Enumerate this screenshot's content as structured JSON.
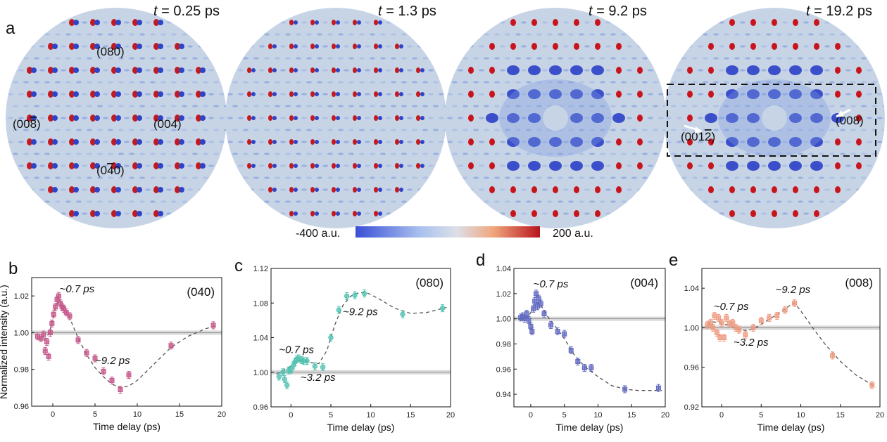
{
  "figure": {
    "panel_a": {
      "letter": "a",
      "patterns": [
        {
          "time_label": "t = 0.25 ps",
          "t_var": "t",
          "t_rest": " = 0.25 ps",
          "kind": "early",
          "miller": [
            {
              "text": "(080)"
            },
            {
              "text": "(00",
              "bar": "8",
              "close": ")"
            },
            {
              "text": "(004)"
            },
            {
              "text": "(0",
              "bar": "4",
              "close": "0)"
            }
          ]
        },
        {
          "time_label": "t = 1.3 ps",
          "t_var": "t",
          "t_rest": " = 1.3 ps",
          "kind": "mid",
          "miller": []
        },
        {
          "time_label": "t = 9.2 ps",
          "t_var": "t",
          "t_rest": " = 9.2 ps",
          "kind": "late",
          "miller": []
        },
        {
          "time_label": "t = 19.2 ps",
          "t_var": "t",
          "t_rest": " = 19.2 ps",
          "kind": "late",
          "miller": [
            {
              "text": "(008)"
            },
            {
              "text": "(001",
              "bar": "2",
              "close": ")"
            }
          ]
        }
      ],
      "colorbar": {
        "min_label": "-400 a.u.",
        "max_label": "200 a.u.",
        "colors": [
          "#3a4fd6",
          "#c8d8ee",
          "#f0b590",
          "#b8141c"
        ]
      }
    }
  },
  "chart_data": [
    {
      "type": "scatter",
      "panel": "b",
      "label": "(040)",
      "xlabel": "Time delay (ps)",
      "ylabel": "Normalized intensity (a.u.)",
      "xlim": [
        -2.5,
        20
      ],
      "ylim": [
        0.96,
        1.03
      ],
      "xticks": [
        0,
        5,
        10,
        15,
        20
      ],
      "yticks": [
        0.96,
        0.98,
        1.0,
        1.02
      ],
      "ytick_labels": [
        "0.96",
        "0.98",
        "1.00",
        "1.02"
      ],
      "color": "#c6568a",
      "marker": "square",
      "points": [
        [
          -1.8,
          0.998
        ],
        [
          -1.4,
          0.997
        ],
        [
          -1.1,
          0.999
        ],
        [
          -0.9,
          0.99
        ],
        [
          -0.7,
          0.995
        ],
        [
          -0.5,
          0.987
        ],
        [
          -0.3,
          1.0
        ],
        [
          -0.1,
          1.005
        ],
        [
          0.1,
          1.01
        ],
        [
          0.3,
          1.014
        ],
        [
          0.5,
          1.018
        ],
        [
          0.7,
          1.02
        ],
        [
          0.9,
          1.016
        ],
        [
          1.1,
          1.014
        ],
        [
          1.3,
          1.013
        ],
        [
          1.6,
          1.011
        ],
        [
          2.0,
          1.009
        ],
        [
          3.0,
          0.996
        ],
        [
          4.0,
          0.989
        ],
        [
          5.0,
          0.986
        ],
        [
          6.0,
          0.979
        ],
        [
          7.0,
          0.974
        ],
        [
          8.0,
          0.969
        ],
        [
          9.0,
          0.977
        ],
        [
          14.0,
          0.993
        ],
        [
          19.0,
          1.004
        ]
      ],
      "fit": [
        [
          -1.8,
          0.997
        ],
        [
          -1.0,
          0.996
        ],
        [
          -0.4,
          1.0
        ],
        [
          0.2,
          1.012
        ],
        [
          0.7,
          1.018
        ],
        [
          1.2,
          1.015
        ],
        [
          2,
          1.008
        ],
        [
          3,
          0.997
        ],
        [
          4,
          0.988
        ],
        [
          5,
          0.981
        ],
        [
          6,
          0.976
        ],
        [
          7,
          0.972
        ],
        [
          8,
          0.97
        ],
        [
          9,
          0.971
        ],
        [
          10,
          0.974
        ],
        [
          12,
          0.983
        ],
        [
          14,
          0.992
        ],
        [
          16,
          0.998
        ],
        [
          18,
          1.002
        ],
        [
          19.5,
          1.004
        ]
      ],
      "annotations": [
        {
          "text": "~0.7 ps",
          "x": 0.8,
          "y": 1.022
        },
        {
          "text": "~9.2 ps",
          "x": 5.0,
          "y": 0.983
        }
      ],
      "baseline": 1.0
    },
    {
      "type": "scatter",
      "panel": "c",
      "label": "(080)",
      "xlabel": "Time delay (ps)",
      "ylabel": "",
      "xlim": [
        -2.5,
        20
      ],
      "ylim": [
        0.96,
        1.12
      ],
      "xticks": [
        0,
        5,
        10,
        15,
        20
      ],
      "yticks": [
        0.96,
        1.0,
        1.04,
        1.08,
        1.12
      ],
      "ytick_labels": [
        "0.96",
        "1.00",
        "1.04",
        "1.08",
        "1.12"
      ],
      "color": "#4fc1b0",
      "marker": "circle",
      "points": [
        [
          -1.5,
          0.995
        ],
        [
          -1.0,
          1.0
        ],
        [
          -0.8,
          0.992
        ],
        [
          -0.5,
          0.985
        ],
        [
          -0.3,
          1.002
        ],
        [
          0.0,
          1.003
        ],
        [
          0.3,
          1.008
        ],
        [
          0.5,
          1.012
        ],
        [
          0.7,
          1.015
        ],
        [
          1.0,
          1.016
        ],
        [
          1.3,
          1.014
        ],
        [
          1.6,
          1.013
        ],
        [
          2.0,
          1.013
        ],
        [
          3.0,
          1.007
        ],
        [
          4.0,
          1.006
        ],
        [
          5.0,
          1.04
        ],
        [
          6.0,
          1.072
        ],
        [
          7.0,
          1.088
        ],
        [
          8.0,
          1.089
        ],
        [
          9.2,
          1.091
        ],
        [
          14.0,
          1.067
        ],
        [
          19.0,
          1.074
        ]
      ],
      "fit": [
        [
          -1.8,
          0.998
        ],
        [
          -1,
          1.002
        ],
        [
          0,
          1.007
        ],
        [
          0.7,
          1.012
        ],
        [
          1.5,
          1.014
        ],
        [
          2.5,
          1.011
        ],
        [
          3.5,
          1.01
        ],
        [
          4.5,
          1.025
        ],
        [
          5.5,
          1.055
        ],
        [
          6.5,
          1.077
        ],
        [
          7.5,
          1.088
        ],
        [
          8.5,
          1.092
        ],
        [
          9.5,
          1.092
        ],
        [
          11,
          1.085
        ],
        [
          13,
          1.074
        ],
        [
          15,
          1.068
        ],
        [
          17,
          1.069
        ],
        [
          19.5,
          1.075
        ]
      ],
      "annotations": [
        {
          "text": "~0.7 ps",
          "x": -1.5,
          "y": 1.022
        },
        {
          "text": "~9.2 ps",
          "x": 6.5,
          "y": 1.066
        },
        {
          "text": "~3.2 ps",
          "x": 1.2,
          "y": 0.99
        }
      ],
      "baseline": 1.0
    },
    {
      "type": "scatter",
      "panel": "d",
      "label": "(004)",
      "xlabel": "Time delay (ps)",
      "ylabel": "",
      "xlim": [
        -2.5,
        20
      ],
      "ylim": [
        0.93,
        1.04
      ],
      "xticks": [
        0,
        5,
        10,
        15,
        20
      ],
      "yticks": [
        0.94,
        0.96,
        0.98,
        1.0,
        1.02,
        1.04
      ],
      "ytick_labels": [
        "0.94",
        "0.96",
        "0.98",
        "1.00",
        "1.02",
        "1.04"
      ],
      "color": "#6068c0",
      "marker": "square",
      "points": [
        [
          -1.5,
          1.001
        ],
        [
          -1.2,
          1.002
        ],
        [
          -0.9,
          1.0
        ],
        [
          -0.6,
          1.004
        ],
        [
          -0.3,
          0.999
        ],
        [
          0.0,
          0.994
        ],
        [
          0.2,
          0.99
        ],
        [
          0.4,
          1.008
        ],
        [
          0.6,
          1.014
        ],
        [
          0.8,
          1.02
        ],
        [
          1.0,
          1.01
        ],
        [
          1.2,
          1.016
        ],
        [
          1.5,
          1.012
        ],
        [
          2.0,
          1.004
        ],
        [
          3.0,
          0.995
        ],
        [
          4.0,
          0.99
        ],
        [
          5.0,
          0.988
        ],
        [
          6.0,
          0.975
        ],
        [
          7.0,
          0.966
        ],
        [
          8.0,
          0.961
        ],
        [
          9.0,
          0.961
        ],
        [
          14.0,
          0.944
        ],
        [
          19.0,
          0.945
        ]
      ],
      "fit": [
        [
          -1.8,
          1.0
        ],
        [
          -1,
          1.0
        ],
        [
          -0.3,
          1.002
        ],
        [
          0.3,
          1.008
        ],
        [
          0.9,
          1.013
        ],
        [
          1.5,
          1.011
        ],
        [
          2.5,
          1.002
        ],
        [
          3.5,
          0.995
        ],
        [
          4.5,
          0.988
        ],
        [
          5.5,
          0.98
        ],
        [
          6.5,
          0.971
        ],
        [
          7.5,
          0.965
        ],
        [
          8.5,
          0.96
        ],
        [
          10,
          0.954
        ],
        [
          12,
          0.947
        ],
        [
          14,
          0.944
        ],
        [
          16,
          0.943
        ],
        [
          19.5,
          0.943
        ]
      ],
      "annotations": [
        {
          "text": "~0.7 ps",
          "x": 0.4,
          "y": 1.025
        }
      ],
      "baseline": 1.0
    },
    {
      "type": "scatter",
      "panel": "e",
      "label": "(008)",
      "xlabel": "Time delay (ps)",
      "ylabel": "",
      "xlim": [
        -2.5,
        20
      ],
      "ylim": [
        0.92,
        1.06
      ],
      "xticks": [
        0,
        5,
        10,
        15,
        20
      ],
      "yticks": [
        0.92,
        0.96,
        1.0,
        1.04
      ],
      "ytick_labels": [
        "0.92",
        "0.96",
        "1.00",
        "1.04"
      ],
      "color": "#ee9a80",
      "marker": "square",
      "points": [
        [
          -1.8,
          1.003
        ],
        [
          -1.4,
          1.005
        ],
        [
          -1.1,
          1.0
        ],
        [
          -0.9,
          1.012
        ],
        [
          -0.6,
          0.995
        ],
        [
          -0.4,
          1.01
        ],
        [
          -0.2,
          0.99
        ],
        [
          0.0,
          1.005
        ],
        [
          0.3,
          0.99
        ],
        [
          0.6,
          1.01
        ],
        [
          1.0,
          1.004
        ],
        [
          1.4,
          1.005
        ],
        [
          1.8,
          1.0
        ],
        [
          2.2,
          0.998
        ],
        [
          3.0,
          0.993
        ],
        [
          4.0,
          1.0
        ],
        [
          5.0,
          1.007
        ],
        [
          6.0,
          1.01
        ],
        [
          7.0,
          1.012
        ],
        [
          8.0,
          1.018
        ],
        [
          9.2,
          1.025
        ],
        [
          14.0,
          0.972
        ],
        [
          19.0,
          0.942
        ]
      ],
      "fit": [
        [
          -1.8,
          1.002
        ],
        [
          -1,
          1.006
        ],
        [
          -0.3,
          1.005
        ],
        [
          0.7,
          1.003
        ],
        [
          1.5,
          1.001
        ],
        [
          2.5,
          0.998
        ],
        [
          3.3,
          0.997
        ],
        [
          4.5,
          1.001
        ],
        [
          5.5,
          1.006
        ],
        [
          6.5,
          1.011
        ],
        [
          7.5,
          1.016
        ],
        [
          8.5,
          1.022
        ],
        [
          9.2,
          1.025
        ],
        [
          10,
          1.017
        ],
        [
          11.5,
          1.0
        ],
        [
          13,
          0.984
        ],
        [
          15,
          0.966
        ],
        [
          17,
          0.952
        ],
        [
          19.5,
          0.94
        ]
      ],
      "annotations": [
        {
          "text": "~0.7 ps",
          "x": -1.0,
          "y": 1.018
        },
        {
          "text": "~9.2 ps",
          "x": 6.8,
          "y": 1.035
        },
        {
          "text": "~3.2 ps",
          "x": 1.5,
          "y": 0.982
        }
      ],
      "baseline": 1.0
    }
  ]
}
